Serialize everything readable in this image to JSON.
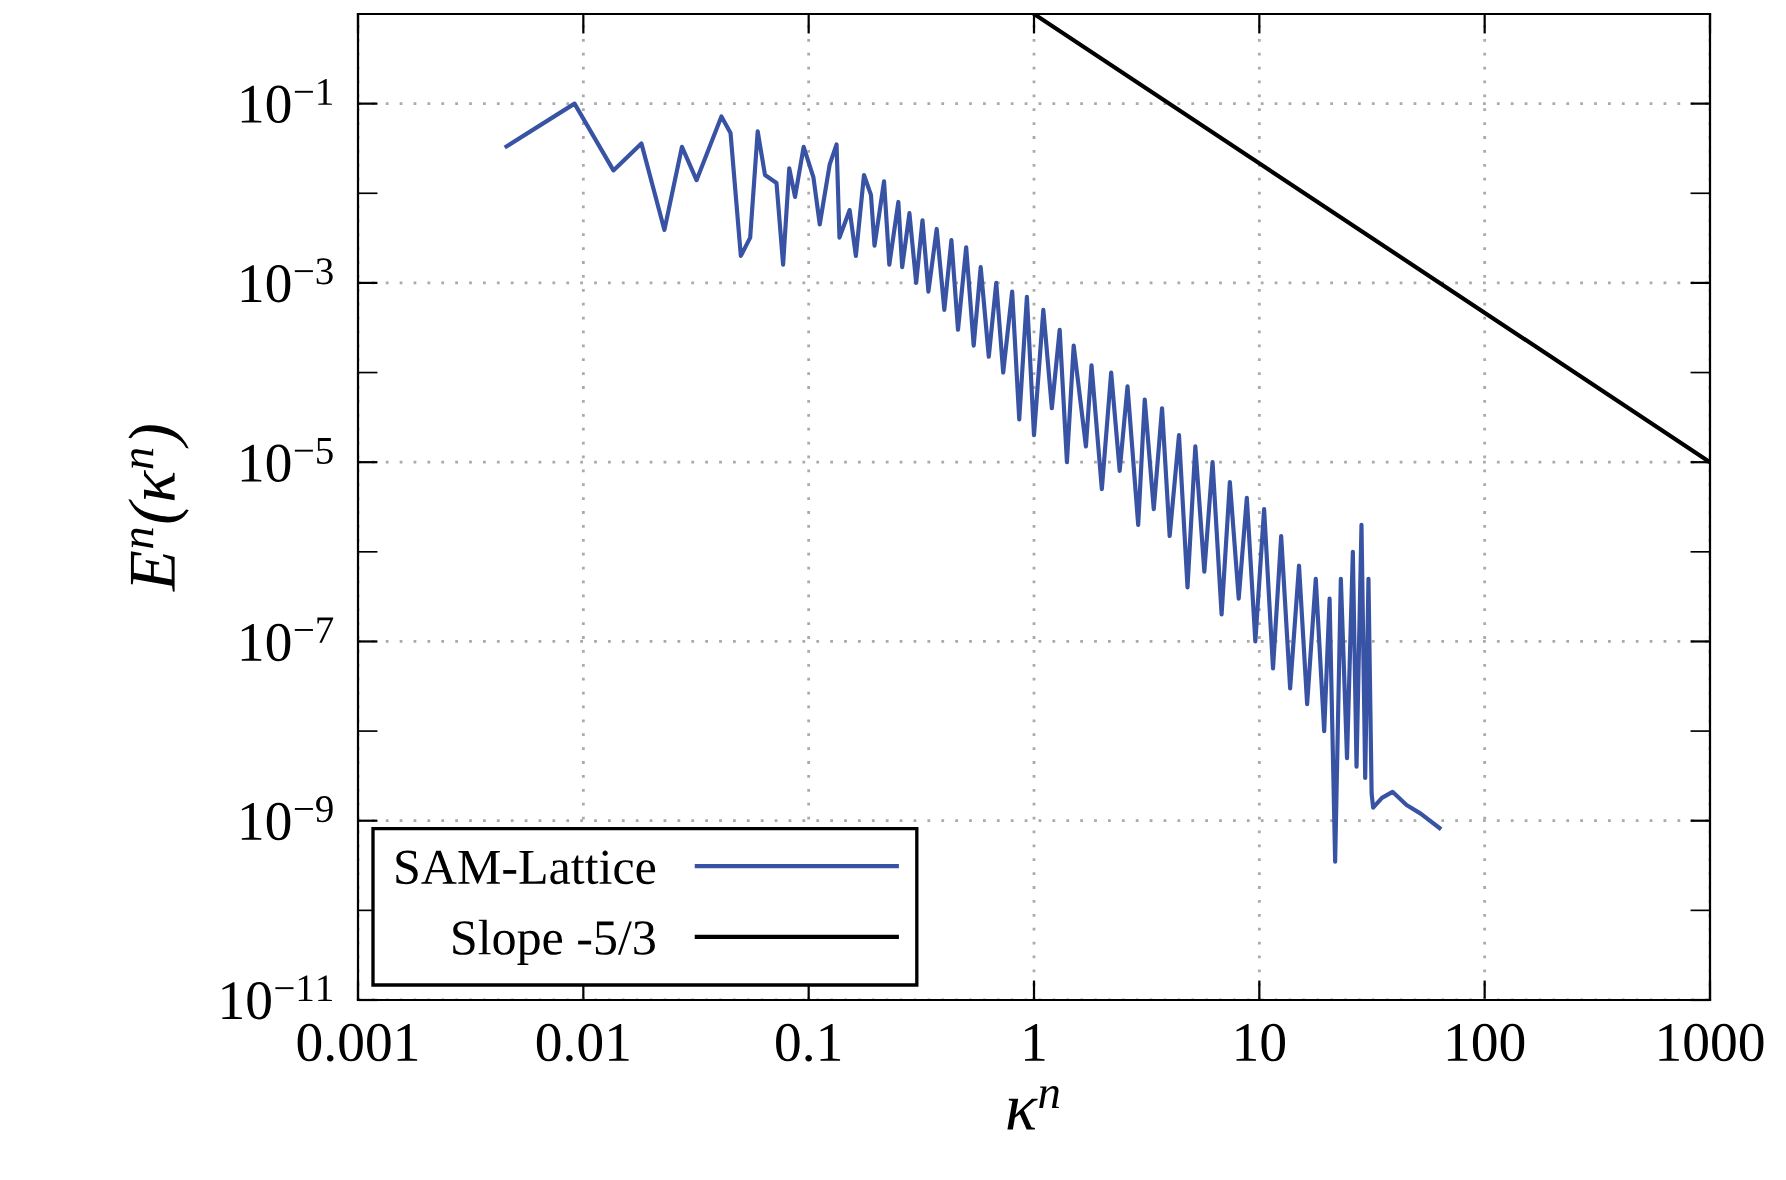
{
  "chart_data": {
    "type": "line",
    "xlabel": "κ$^{n}$",
    "ylabel": "E$^{n}$(κ$^{n}$)",
    "log": "xy",
    "grid": true,
    "legend": "bottom left",
    "xlim": [
      0.001,
      1000
    ],
    "xticks": [
      0.001,
      0.01,
      0.1,
      1,
      10,
      100,
      1000
    ],
    "ylim": [
      1e-11,
      1
    ],
    "yticks": [
      {
        "value": 1e-11,
        "label": "10$^{−11}$"
      },
      {
        "value": 1e-10,
        "label": null
      },
      {
        "value": 1e-09,
        "label": "10$^{−9}$"
      },
      {
        "value": 1e-08,
        "label": null
      },
      {
        "value": 1e-07,
        "label": "10$^{−7}$"
      },
      {
        "value": 1e-06,
        "label": null
      },
      {
        "value": 1e-05,
        "label": "10$^{−5}$"
      },
      {
        "value": 0.0001,
        "label": null
      },
      {
        "value": 0.001,
        "label": "10$^{−3}$"
      },
      {
        "value": 0.01,
        "label": null
      },
      {
        "value": 0.1,
        "label": "10$^{−1}$"
      }
    ],
    "series": [
      {
        "name": "SAM-Lattice",
        "color": "#3953a4",
        "x": [
          0.00456,
          0.00914,
          0.0136,
          0.0181,
          0.0229,
          0.0274,
          0.0318,
          0.041,
          0.045,
          0.05,
          0.055,
          0.0594,
          0.064,
          0.072,
          0.077,
          0.082,
          0.087,
          0.095,
          0.105,
          0.112,
          0.124,
          0.133,
          0.137,
          0.152,
          0.162,
          0.176,
          0.189,
          0.196,
          0.216,
          0.228,
          0.25,
          0.26,
          0.28,
          0.3,
          0.32,
          0.34,
          0.37,
          0.4,
          0.43,
          0.46,
          0.5,
          0.54,
          0.58,
          0.63,
          0.68,
          0.73,
          0.8,
          0.86,
          0.93,
          1.0,
          1.1,
          1.2,
          1.3,
          1.4,
          1.5,
          1.7,
          1.8,
          2.0,
          2.2,
          2.4,
          2.6,
          2.9,
          3.1,
          3.4,
          3.7,
          4.0,
          4.4,
          4.8,
          5.2,
          5.7,
          6.2,
          6.8,
          7.4,
          8.1,
          8.8,
          9.6,
          10.5,
          11.5,
          12.5,
          13.7,
          15,
          16.3,
          17.8,
          19.4,
          20.5,
          21.7,
          23,
          24.5,
          26,
          27,
          28.4,
          29.5,
          30.5,
          31.5,
          32,
          35,
          39,
          45,
          52,
          63
        ],
        "values": [
          0.0333,
          0.1,
          0.018,
          0.036,
          0.0039,
          0.033,
          0.014,
          0.072,
          0.047,
          0.002,
          0.0032,
          0.049,
          0.016,
          0.013,
          0.0016,
          0.019,
          0.0091,
          0.033,
          0.015,
          0.0045,
          0.021,
          0.035,
          0.0032,
          0.0065,
          0.002,
          0.016,
          0.0096,
          0.0026,
          0.0136,
          0.0016,
          0.008,
          0.0015,
          0.006,
          0.001,
          0.005,
          0.0008,
          0.004,
          0.0005,
          0.003,
          0.0003,
          0.0025,
          0.0002,
          0.0015,
          0.00015,
          0.001,
          0.0001,
          0.0008,
          3e-05,
          0.0007,
          2e-05,
          0.0005,
          4e-05,
          0.0003,
          1e-05,
          0.0002,
          1.5e-05,
          0.00012,
          5e-06,
          0.0001,
          8e-06,
          7e-05,
          2e-06,
          5e-05,
          3e-06,
          4e-05,
          1.5e-06,
          2e-05,
          4e-07,
          1.5e-05,
          6e-07,
          1e-05,
          2e-07,
          6e-06,
          3e-07,
          4e-06,
          1e-07,
          3e-06,
          5e-08,
          1.5e-06,
          3e-08,
          7e-07,
          2e-08,
          5e-07,
          1e-08,
          3e-07,
          3.5e-10,
          5e-07,
          5e-09,
          1e-06,
          4e-09,
          2e-06,
          3e-09,
          5e-07,
          2e-09,
          1.4e-09,
          1.8e-09,
          2.1e-09,
          1.5e-09,
          1.2e-09,
          8.3e-10
        ]
      },
      {
        "name": "Slope -5/3",
        "color": "#000000",
        "x": [
          1,
          1000
        ],
        "values": [
          1,
          1e-05
        ]
      }
    ]
  }
}
